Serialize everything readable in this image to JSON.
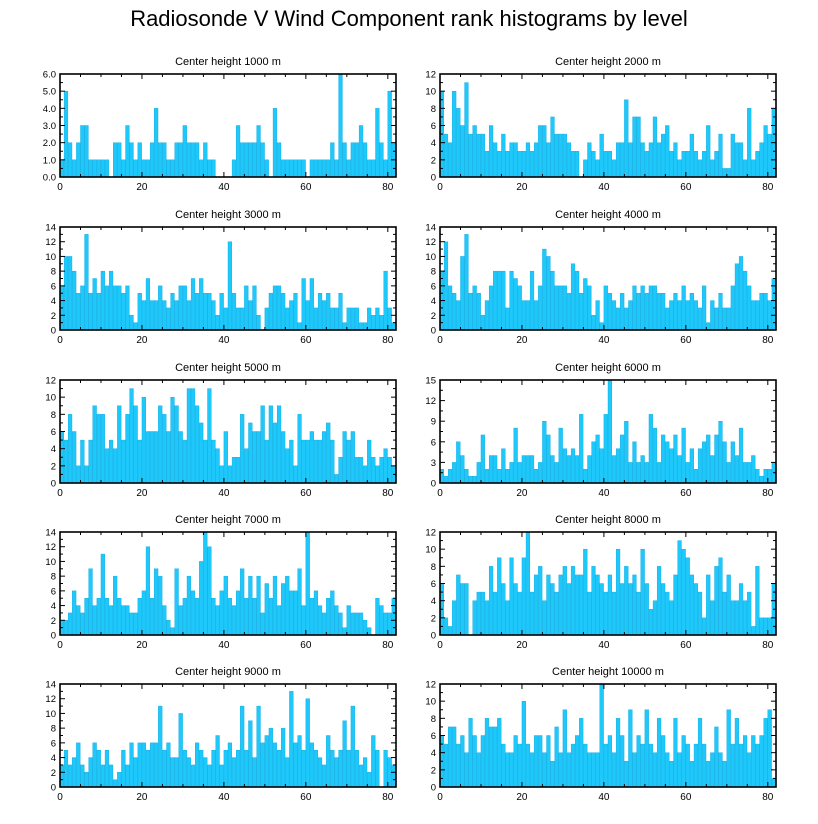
{
  "title": "Radiosonde V Wind Component rank histograms by level",
  "colors": {
    "bar": "#1EC8FA",
    "bar_edge": "#0AA8E0",
    "axis": "#000000",
    "background": "#ffffff"
  },
  "chart_data": [
    {
      "type": "bar",
      "title": "Center height 1000 m",
      "xlim": [
        0,
        82
      ],
      "xticks": [
        0,
        20,
        40,
        60,
        80
      ],
      "ylim": [
        0,
        6
      ],
      "yticks": [
        0,
        1,
        2,
        3,
        4,
        5,
        6
      ],
      "ytick_labels": [
        "0.0",
        "1.0",
        "2.0",
        "3.0",
        "4.0",
        "5.0",
        "6.0"
      ],
      "values": [
        1,
        5,
        2,
        1,
        2,
        3,
        3,
        1,
        1,
        1,
        1,
        1,
        0,
        2,
        2,
        1,
        3,
        2,
        1,
        2,
        1,
        1,
        2,
        4,
        2,
        2,
        1,
        1,
        2,
        2,
        3,
        2,
        2,
        2,
        1,
        2,
        1,
        1,
        0,
        0,
        0,
        0,
        1,
        3,
        2,
        2,
        2,
        2,
        3,
        2,
        1,
        0,
        4,
        2,
        1,
        1,
        1,
        1,
        1,
        1,
        0,
        1,
        1,
        1,
        1,
        1,
        2,
        1,
        6,
        2,
        1,
        2,
        2,
        3,
        2,
        1,
        1,
        4,
        2,
        1,
        5,
        2
      ]
    },
    {
      "type": "bar",
      "title": "Center height 2000 m",
      "xlim": [
        0,
        82
      ],
      "xticks": [
        0,
        20,
        40,
        60,
        80
      ],
      "ylim": [
        0,
        12
      ],
      "yticks": [
        0,
        2,
        4,
        6,
        8,
        10,
        12
      ],
      "ytick_labels": [
        "0",
        "2",
        "4",
        "6",
        "8",
        "10",
        "12"
      ],
      "values": [
        10,
        5,
        4,
        10,
        8,
        6,
        11,
        5,
        6,
        5,
        5,
        3,
        6,
        4,
        3,
        5,
        3,
        4,
        4,
        3,
        3,
        4,
        3,
        4,
        6,
        6,
        4,
        7,
        5,
        5,
        5,
        4,
        3,
        3,
        0,
        2,
        4,
        3,
        2,
        5,
        3,
        3,
        2,
        4,
        4,
        9,
        4,
        7,
        7,
        4,
        3,
        4,
        7,
        4,
        5,
        6,
        3,
        4,
        2,
        3,
        3,
        5,
        3,
        2,
        3,
        6,
        2,
        3,
        5,
        1,
        1,
        5,
        4,
        4,
        2,
        8,
        2,
        3,
        4,
        6,
        5,
        8
      ]
    },
    {
      "type": "bar",
      "title": "Center height 3000 m",
      "xlim": [
        0,
        82
      ],
      "xticks": [
        0,
        20,
        40,
        60,
        80
      ],
      "ylim": [
        0,
        14
      ],
      "yticks": [
        0,
        2,
        4,
        6,
        8,
        10,
        12,
        14
      ],
      "ytick_labels": [
        "0",
        "2",
        "4",
        "6",
        "8",
        "10",
        "12",
        "14"
      ],
      "values": [
        6,
        10,
        10,
        8,
        5,
        6,
        13,
        5,
        7,
        5,
        8,
        6,
        8,
        6,
        6,
        5,
        6,
        2,
        1,
        5,
        4,
        7,
        4,
        4,
        6,
        4,
        3,
        5,
        4,
        6,
        6,
        4,
        7,
        5,
        7,
        5,
        5,
        4,
        2,
        5,
        3,
        12,
        5,
        3,
        3,
        6,
        4,
        6,
        2,
        0,
        3,
        5,
        6,
        6,
        5,
        3,
        4,
        5,
        1,
        7,
        4,
        7,
        3,
        5,
        4,
        5,
        3,
        3,
        5,
        1,
        3,
        3,
        3,
        1,
        1,
        3,
        2,
        3,
        2,
        8,
        3,
        1
      ]
    },
    {
      "type": "bar",
      "title": "Center height 4000 m",
      "xlim": [
        0,
        82
      ],
      "xticks": [
        0,
        20,
        40,
        60,
        80
      ],
      "ylim": [
        0,
        14
      ],
      "yticks": [
        0,
        2,
        4,
        6,
        8,
        10,
        12,
        14
      ],
      "ytick_labels": [
        "0",
        "2",
        "4",
        "6",
        "8",
        "10",
        "12",
        "14"
      ],
      "values": [
        8,
        12,
        6,
        5,
        4,
        10,
        13,
        5,
        6,
        5,
        2,
        4,
        6,
        8,
        8,
        8,
        3,
        8,
        7,
        6,
        4,
        4,
        8,
        4,
        6,
        11,
        10,
        8,
        6,
        6,
        6,
        5,
        9,
        8,
        5,
        7,
        6,
        2,
        4,
        1,
        6,
        5,
        4,
        3,
        5,
        3,
        4,
        6,
        5,
        6,
        5,
        6,
        6,
        5,
        5,
        3,
        4,
        5,
        4,
        6,
        4,
        5,
        4,
        3,
        6,
        1,
        4,
        3,
        5,
        3,
        3,
        6,
        9,
        10,
        8,
        6,
        4,
        4,
        5,
        5,
        4,
        7
      ]
    },
    {
      "type": "bar",
      "title": "Center height 5000 m",
      "xlim": [
        0,
        82
      ],
      "xticks": [
        0,
        20,
        40,
        60,
        80
      ],
      "ylim": [
        0,
        12
      ],
      "yticks": [
        0,
        2,
        4,
        6,
        8,
        10,
        12
      ],
      "ytick_labels": [
        "0",
        "2",
        "4",
        "6",
        "8",
        "10",
        "12"
      ],
      "values": [
        6,
        5,
        8,
        6,
        2,
        5,
        2,
        5,
        9,
        8,
        8,
        4,
        5,
        4,
        9,
        5,
        8,
        11,
        9,
        5,
        10,
        6,
        6,
        6,
        9,
        8,
        6,
        10,
        9,
        6,
        5,
        11,
        11,
        9,
        7,
        5,
        11,
        5,
        4,
        2,
        6,
        2,
        3,
        3,
        8,
        4,
        7,
        6,
        6,
        9,
        5,
        9,
        7,
        9,
        6,
        4,
        5,
        2,
        8,
        5,
        5,
        6,
        5,
        5,
        6,
        7,
        5,
        1,
        3,
        6,
        5,
        6,
        3,
        3,
        2,
        5,
        3,
        2,
        3,
        4,
        3,
        2
      ]
    },
    {
      "type": "bar",
      "title": "Center height 6000 m",
      "xlim": [
        0,
        82
      ],
      "xticks": [
        0,
        20,
        40,
        60,
        80
      ],
      "ylim": [
        0,
        15
      ],
      "yticks": [
        0,
        3,
        6,
        9,
        12,
        15
      ],
      "ytick_labels": [
        "0",
        "3",
        "6",
        "9",
        "12",
        "15"
      ],
      "values": [
        2,
        1,
        2,
        3,
        6,
        4,
        2,
        1,
        1,
        3,
        7,
        2,
        4,
        4,
        2,
        5,
        2,
        3,
        8,
        3,
        4,
        4,
        4,
        2,
        3,
        9,
        7,
        4,
        3,
        8,
        5,
        4,
        5,
        4,
        10,
        2,
        4,
        6,
        7,
        5,
        10,
        15,
        4,
        5,
        7,
        9,
        3,
        6,
        3,
        4,
        3,
        10,
        8,
        3,
        7,
        6,
        5,
        7,
        4,
        8,
        3,
        5,
        2,
        5,
        6,
        7,
        4,
        7,
        9,
        6,
        3,
        6,
        4,
        8,
        3,
        3,
        4,
        2,
        1,
        2,
        2,
        3
      ]
    },
    {
      "type": "bar",
      "title": "Center height 7000 m",
      "xlim": [
        0,
        82
      ],
      "xticks": [
        0,
        20,
        40,
        60,
        80
      ],
      "ylim": [
        0,
        14
      ],
      "yticks": [
        0,
        2,
        4,
        6,
        8,
        10,
        12,
        14
      ],
      "ytick_labels": [
        "0",
        "2",
        "4",
        "6",
        "8",
        "10",
        "12",
        "14"
      ],
      "values": [
        2,
        2,
        3,
        6,
        4,
        3,
        5,
        9,
        4,
        5,
        11,
        5,
        4,
        8,
        5,
        4,
        4,
        3,
        3,
        5,
        6,
        12,
        5,
        9,
        8,
        4,
        2,
        1,
        9,
        4,
        5,
        8,
        6,
        5,
        10,
        14,
        12,
        5,
        4,
        6,
        8,
        5,
        4,
        6,
        9,
        5,
        8,
        5,
        8,
        3,
        7,
        5,
        8,
        4,
        7,
        8,
        6,
        6,
        9,
        4,
        14,
        5,
        6,
        4,
        3,
        5,
        6,
        4,
        3,
        1,
        4,
        3,
        3,
        3,
        2,
        1,
        0,
        5,
        4,
        3,
        3,
        5
      ]
    },
    {
      "type": "bar",
      "title": "Center height 8000 m",
      "xlim": [
        0,
        82
      ],
      "xticks": [
        0,
        20,
        40,
        60,
        80
      ],
      "ylim": [
        0,
        12
      ],
      "yticks": [
        0,
        2,
        4,
        6,
        8,
        10,
        12
      ],
      "ytick_labels": [
        "0",
        "2",
        "4",
        "6",
        "8",
        "10",
        "12"
      ],
      "values": [
        6,
        2,
        1,
        4,
        7,
        6,
        6,
        0,
        4,
        5,
        5,
        4,
        8,
        5,
        9,
        6,
        4,
        9,
        6,
        5,
        9,
        12,
        5,
        7,
        8,
        4,
        7,
        6,
        5,
        7,
        8,
        6,
        8,
        7,
        7,
        10,
        5,
        8,
        7,
        6,
        5,
        7,
        5,
        10,
        6,
        8,
        6,
        7,
        5,
        10,
        6,
        3,
        4,
        8,
        6,
        5,
        4,
        7,
        11,
        10,
        9,
        7,
        6,
        5,
        2,
        7,
        4,
        8,
        9,
        5,
        7,
        4,
        4,
        6,
        4,
        5,
        1,
        8,
        2,
        2,
        2,
        6
      ]
    },
    {
      "type": "bar",
      "title": "Center height 9000 m",
      "xlim": [
        0,
        82
      ],
      "xticks": [
        0,
        20,
        40,
        60,
        80
      ],
      "ylim": [
        0,
        14
      ],
      "yticks": [
        0,
        2,
        4,
        6,
        8,
        10,
        12,
        14
      ],
      "ytick_labels": [
        "0",
        "2",
        "4",
        "6",
        "8",
        "10",
        "12",
        "14"
      ],
      "values": [
        3,
        5,
        3,
        4,
        6,
        3,
        2,
        4,
        6,
        5,
        3,
        5,
        3,
        1,
        2,
        5,
        3,
        6,
        4,
        6,
        6,
        5,
        6,
        6,
        11,
        5,
        6,
        4,
        4,
        10,
        5,
        4,
        3,
        6,
        5,
        4,
        3,
        5,
        7,
        3,
        5,
        6,
        4,
        5,
        11,
        5,
        9,
        4,
        11,
        6,
        7,
        8,
        6,
        5,
        8,
        4,
        13,
        6,
        7,
        5,
        12,
        6,
        5,
        4,
        3,
        7,
        5,
        4,
        5,
        9,
        5,
        11,
        5,
        3,
        4,
        2,
        7,
        5,
        0,
        5,
        4,
        3
      ]
    },
    {
      "type": "bar",
      "title": "Center height 10000 m",
      "xlim": [
        0,
        82
      ],
      "xticks": [
        0,
        20,
        40,
        60,
        80
      ],
      "ylim": [
        0,
        12
      ],
      "yticks": [
        0,
        2,
        4,
        6,
        8,
        10,
        12
      ],
      "ytick_labels": [
        "0",
        "2",
        "4",
        "6",
        "8",
        "10",
        "12"
      ],
      "values": [
        6,
        5,
        7,
        7,
        5,
        6,
        4,
        8,
        6,
        4,
        6,
        8,
        7,
        7,
        8,
        5,
        4,
        4,
        6,
        5,
        10,
        5,
        4,
        6,
        6,
        4,
        6,
        3,
        7,
        4,
        9,
        4,
        5,
        6,
        8,
        5,
        4,
        4,
        4,
        12,
        5,
        6,
        4,
        8,
        6,
        3,
        9,
        4,
        6,
        5,
        9,
        5,
        4,
        8,
        6,
        4,
        3,
        8,
        4,
        6,
        5,
        3,
        5,
        8,
        5,
        3,
        4,
        7,
        4,
        3,
        9,
        5,
        8,
        5,
        6,
        4,
        6,
        5,
        6,
        8,
        9,
        1
      ]
    }
  ]
}
